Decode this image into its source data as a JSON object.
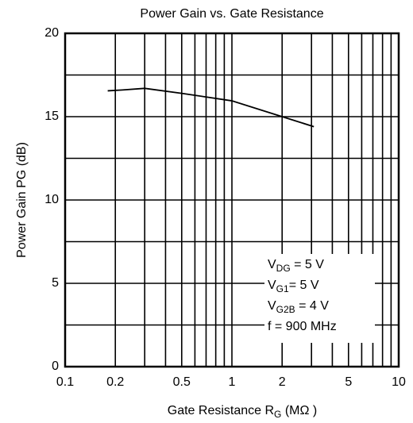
{
  "chart_data": {
    "type": "line",
    "title": "Power Gain vs. Gate Resistance",
    "x_label": {
      "text": "Gate Resistance  R",
      "sub": "G",
      "rest": "  (MΩ )"
    },
    "y_label": "Power Gain  PG (dB)",
    "x": [
      0.18,
      0.22,
      0.3,
      0.5,
      1,
      2,
      3.1
    ],
    "series": [
      {
        "name": "PG",
        "color": "#000000",
        "values": [
          16.55,
          16.6,
          16.7,
          16.4,
          15.95,
          15.0,
          14.4
        ]
      }
    ],
    "log_x": true,
    "grid": true,
    "xlim": [
      0.1,
      10
    ],
    "xticks": [
      0.1,
      0.2,
      0.5,
      1,
      2,
      5,
      10
    ],
    "xminor": [
      0.3,
      0.4,
      0.6,
      0.7,
      0.8,
      0.9,
      3,
      4,
      6,
      7,
      8,
      9
    ],
    "ylim": [
      0,
      20
    ],
    "yticks": [
      0,
      5,
      10,
      15,
      20
    ],
    "yminor": [
      2.5,
      7.5,
      12.5,
      17.5
    ],
    "annotations": [
      {
        "text": "V",
        "sub": "DG",
        "rest": " = 5 V"
      },
      {
        "text": "V",
        "sub": "G1",
        "rest": "= 5 V"
      },
      {
        "text": "V",
        "sub": "G2B",
        "rest": " = 4 V"
      },
      {
        "text": "f = 900 MHz",
        "sub": "",
        "rest": ""
      }
    ]
  }
}
